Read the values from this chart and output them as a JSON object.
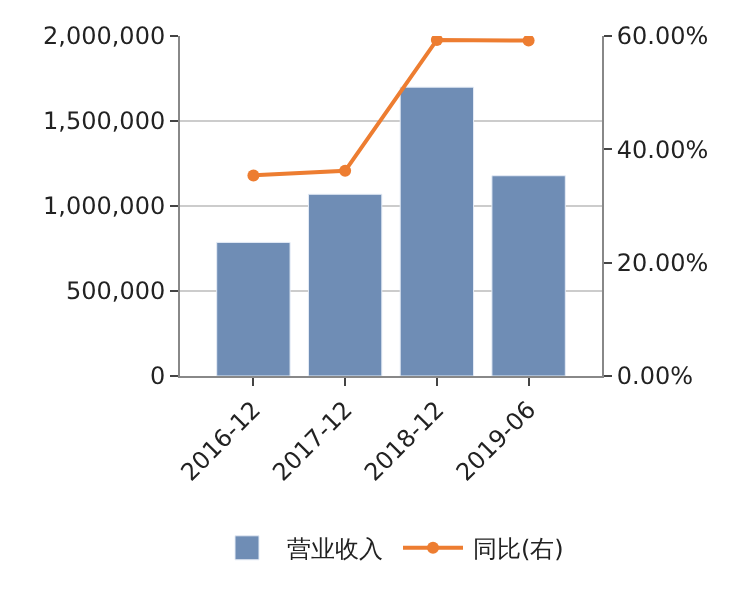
{
  "chart_data": {
    "type": "bar",
    "categories": [
      "2016-12",
      "2017-12",
      "2018-12",
      "2019-06"
    ],
    "series": [
      {
        "name": "营业收入",
        "color": "#6f8db5",
        "values": [
          786000,
          1069000,
          1699000,
          1178000
        ]
      },
      {
        "name": "同比(右)",
        "type": "line",
        "axis": "y2",
        "color": "#ed7d31",
        "marker": "circle",
        "values": [
          35.4,
          36.2,
          59.3,
          59.2
        ]
      }
    ],
    "ylim": [
      0,
      2000000
    ],
    "yticks": [
      {
        "value": 0,
        "label": "0"
      },
      {
        "value": 500000,
        "label": "500,000"
      },
      {
        "value": 1000000,
        "label": "1,000,000"
      },
      {
        "value": 1500000,
        "label": "1,500,000"
      },
      {
        "value": 2000000,
        "label": "2,000,000"
      }
    ],
    "y2lim": [
      0,
      60
    ],
    "y2ticks": [
      {
        "value": 0,
        "label": "0.00%"
      },
      {
        "value": 20,
        "label": "20.00%"
      },
      {
        "value": 40,
        "label": "40.00%"
      },
      {
        "value": 60,
        "label": "60.00%"
      }
    ],
    "grid": "y",
    "legend": "bottom"
  }
}
